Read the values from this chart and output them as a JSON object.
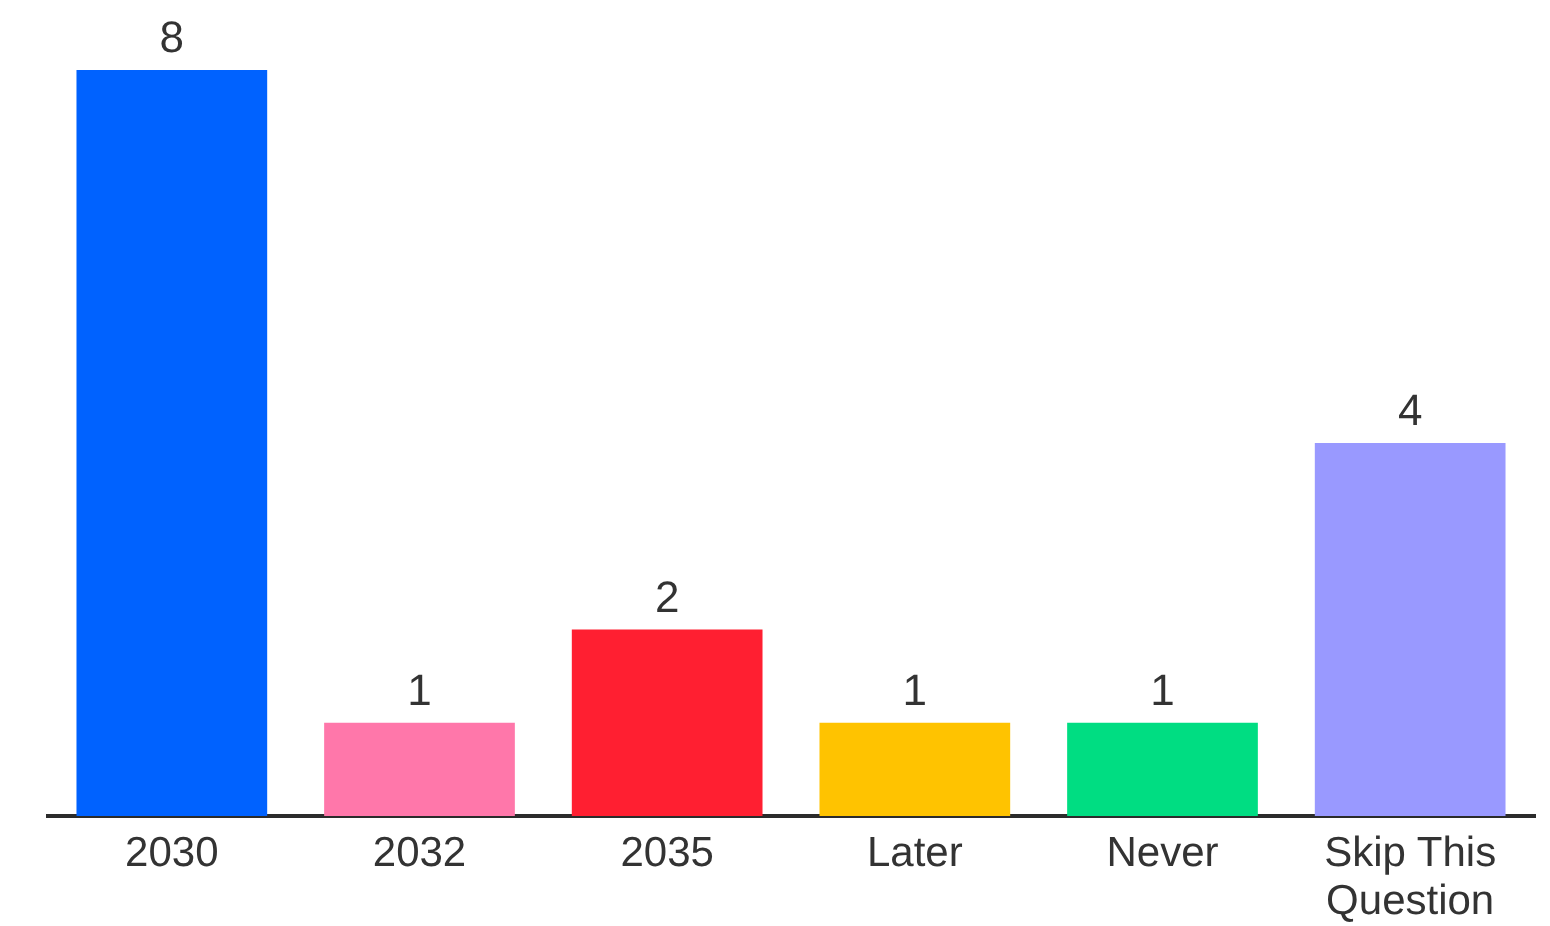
{
  "chart_data": {
    "type": "bar",
    "categories": [
      "2030",
      "2032",
      "2035",
      "Later",
      "Never",
      "Skip This Question"
    ],
    "values": [
      8,
      1,
      2,
      1,
      1,
      4
    ],
    "colors": [
      "#0062ff",
      "#ff77aa",
      "#ff1f31",
      "#ffc300",
      "#00dd82",
      "#9999ff"
    ],
    "data_labels": true,
    "tick_labels": "x"
  }
}
